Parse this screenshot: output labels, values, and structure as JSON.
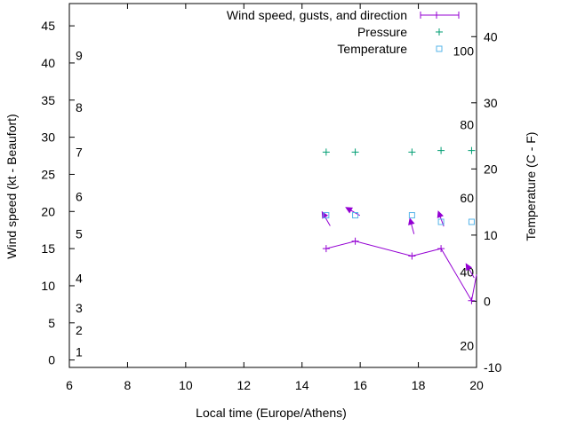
{
  "chart_data": {
    "type": "line",
    "xlabel": "Local time (Europe/Athens)",
    "ylabel_left": "Wind speed (kt - Beaufort)",
    "ylabel_right": "Temperature (C - F)",
    "xlim": [
      6,
      20
    ],
    "ylim_left": [
      -1,
      48
    ],
    "ylim_right": [
      -10,
      45
    ],
    "x_ticks": [
      6,
      8,
      10,
      12,
      14,
      16,
      18,
      20
    ],
    "y_ticks_left": [
      0,
      5,
      10,
      15,
      20,
      25,
      30,
      35,
      40,
      45
    ],
    "y_ticks_right": [
      -10,
      0,
      10,
      20,
      30,
      40
    ],
    "beaufort_labels": [
      {
        "label": "1",
        "kt": 1.1
      },
      {
        "label": "2",
        "kt": 4.0
      },
      {
        "label": "3",
        "kt": 7.0
      },
      {
        "label": "4",
        "kt": 11.0
      },
      {
        "label": "5",
        "kt": 17.0
      },
      {
        "label": "6",
        "kt": 22.0
      },
      {
        "label": "7",
        "kt": 28.0
      },
      {
        "label": "8",
        "kt": 34.0
      },
      {
        "label": "9",
        "kt": 41.0
      }
    ],
    "fahrenheit_labels": [
      {
        "label": "20",
        "celsius": -6.7
      },
      {
        "label": "40",
        "celsius": 4.4
      },
      {
        "label": "60",
        "celsius": 15.6
      },
      {
        "label": "80",
        "celsius": 26.7
      },
      {
        "label": "100",
        "celsius": 37.8
      }
    ],
    "legend": [
      {
        "label": "Wind speed, gusts, and direction",
        "color": "#9400d3",
        "marker": "plus-line"
      },
      {
        "label": "Pressure",
        "color": "#009e73",
        "marker": "plus"
      },
      {
        "label": "Temperature",
        "color": "#56b4e9",
        "marker": "square"
      }
    ],
    "series": [
      {
        "name": "Wind speed",
        "axis": "left",
        "color": "#9400d3",
        "x": [
          14.83,
          15.83,
          17.78,
          18.78,
          19.83,
          20.0
        ],
        "values": [
          15.0,
          16.0,
          14.0,
          15.0,
          8.0,
          11.5
        ]
      },
      {
        "name": "Wind direction arrows",
        "axis": "left",
        "color": "#9400d3",
        "x": [
          14.83,
          15.75,
          17.78,
          18.78,
          19.78
        ],
        "values": [
          19.0,
          20.0,
          18.0,
          19.0,
          12.0
        ],
        "bearing_deg": [
          330,
          300,
          345,
          340,
          330
        ]
      },
      {
        "name": "Pressure",
        "axis": "left",
        "color": "#009e73",
        "x": [
          14.83,
          15.83,
          17.78,
          18.78,
          19.83
        ],
        "values": [
          28.0,
          28.0,
          28.0,
          28.2,
          28.2
        ]
      },
      {
        "name": "Temperature",
        "axis": "right",
        "color": "#56b4e9",
        "x": [
          14.83,
          15.83,
          17.78,
          18.78,
          19.83
        ],
        "values": [
          13.0,
          13.0,
          13.0,
          12.0,
          12.0
        ]
      }
    ]
  }
}
